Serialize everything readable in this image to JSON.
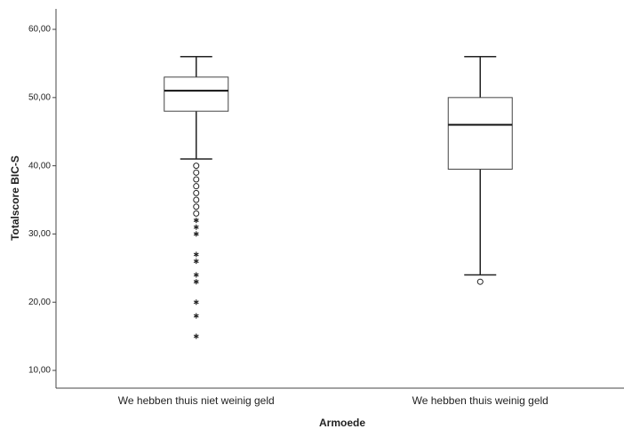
{
  "chart_data": {
    "type": "box",
    "xlabel": "Armoede",
    "ylabel": "Totalscore BIC-S",
    "categories": [
      "We hebben thuis niet weinig geld",
      "We hebben thuis weinig geld"
    ],
    "boxes": [
      {
        "min": 41,
        "q1": 48,
        "median": 51,
        "q3": 53,
        "max": 56,
        "outliers": [
          40,
          39,
          38,
          37,
          36,
          35,
          34,
          33
        ],
        "extremes": [
          32,
          31,
          30,
          27,
          26,
          24,
          23,
          20,
          18,
          15
        ]
      },
      {
        "min": 24,
        "q1": 39.5,
        "median": 46,
        "q3": 50,
        "max": 56,
        "outliers": [
          23
        ],
        "extremes": []
      }
    ],
    "ylim": [
      7.4,
      63
    ],
    "yticks": [
      {
        "value": 10,
        "label": "10,00"
      },
      {
        "value": 20,
        "label": "20,00"
      },
      {
        "value": 30,
        "label": "30,00"
      },
      {
        "value": 40,
        "label": "40,00"
      },
      {
        "value": 50,
        "label": "50,00"
      },
      {
        "value": 60,
        "label": "60,00"
      }
    ],
    "color": "#ffffff"
  }
}
